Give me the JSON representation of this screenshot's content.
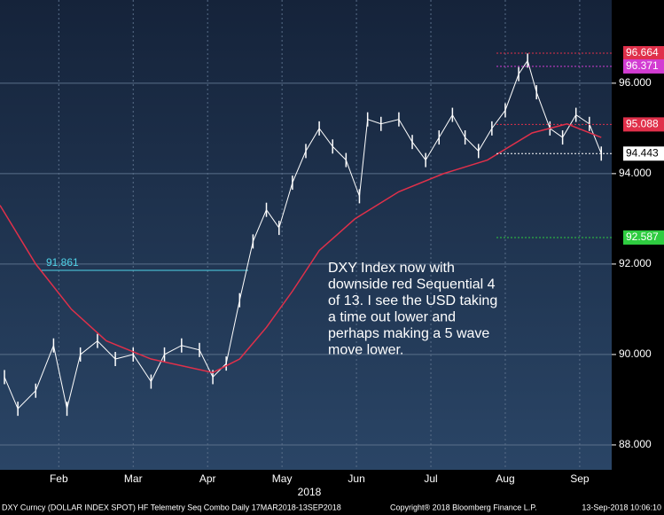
{
  "chart_data": {
    "type": "line",
    "x": [
      1.27,
      1.45,
      1.69,
      1.93,
      2.11,
      2.29,
      2.52,
      2.76,
      3.0,
      3.24,
      3.42,
      3.65,
      3.89,
      4.07,
      4.25,
      4.43,
      4.61,
      4.79,
      4.96,
      5.14,
      5.32,
      5.5,
      5.68,
      5.86,
      6.04,
      6.15,
      6.33,
      6.57,
      6.75,
      6.93,
      7.11,
      7.29,
      7.46,
      7.64,
      7.82,
      8.0,
      8.18,
      8.3,
      8.42,
      8.6,
      8.77,
      8.95,
      9.13,
      9.29
    ],
    "series": [
      {
        "color": "#ffffff",
        "values": [
          89.5,
          88.8,
          89.2,
          90.2,
          88.8,
          90.0,
          90.3,
          89.9,
          90.0,
          89.4,
          90.0,
          90.2,
          90.1,
          89.5,
          89.8,
          91.2,
          92.5,
          93.2,
          92.8,
          93.8,
          94.5,
          95.0,
          94.6,
          94.3,
          93.5,
          95.2,
          95.1,
          95.2,
          94.7,
          94.3,
          94.8,
          95.3,
          94.8,
          94.5,
          95.0,
          95.4,
          96.2,
          96.5,
          95.8,
          95.0,
          94.8,
          95.3,
          95.1,
          94.443
        ]
      }
    ],
    "ma": {
      "color": "#e0304a",
      "x": [
        1.21,
        1.69,
        2.17,
        2.64,
        3.24,
        4.07,
        4.43,
        4.79,
        5.14,
        5.5,
        5.98,
        6.57,
        7.17,
        7.76,
        8.36,
        8.83,
        9.29
      ],
      "values": [
        93.3,
        92.0,
        91.0,
        90.3,
        89.9,
        89.6,
        89.9,
        90.6,
        91.4,
        92.3,
        93.0,
        93.6,
        94.0,
        94.3,
        94.9,
        95.1,
        94.8
      ]
    },
    "xlim": [
      1.21,
      9.43
    ],
    "xticks": [
      {
        "value": 2,
        "label": "Feb"
      },
      {
        "value": 3,
        "label": "Mar"
      },
      {
        "value": 4,
        "label": "Apr"
      },
      {
        "value": 5,
        "label": "May"
      },
      {
        "value": 6,
        "label": "Jun"
      },
      {
        "value": 7,
        "label": "Jul"
      },
      {
        "value": 8,
        "label": "Aug"
      },
      {
        "value": 9,
        "label": "Sep"
      }
    ],
    "x_label": "2018",
    "ylim": [
      87.45,
      97.84
    ],
    "yticks": [
      {
        "value": 88,
        "label": "88.000"
      },
      {
        "value": 90,
        "label": "90.000"
      },
      {
        "value": 92,
        "label": "92.000"
      },
      {
        "value": 94,
        "label": "94.000"
      },
      {
        "value": 96,
        "label": "96.000"
      }
    ],
    "grid": true,
    "price_labels": [
      {
        "value": 96.664,
        "color": "#e0304a"
      },
      {
        "value": 96.371,
        "color": "#d23cd2"
      },
      {
        "value": 95.088,
        "color": "#e0304a"
      },
      {
        "value": 94.443,
        "color": "#ffffff"
      },
      {
        "value": 92.587,
        "color": "#2ecc40"
      }
    ],
    "left_level": {
      "value": 91.861,
      "color": "#4fd3e8"
    },
    "annotation": [
      "DXY Index now with",
      "downside red Sequential 4",
      "of 13.  I see the USD taking",
      "a time out lower and",
      "perhaps making a 5 wave",
      "move lower."
    ],
    "footer": {
      "left": "DXY Curncy (DOLLAR INDEX SPOT) HF Telemetry Seq Combo  Daily 17MAR2018-13SEP2018",
      "center": "Copyright® 2018 Bloomberg Finance L.P.",
      "right": "13-Sep-2018 10:06:10"
    }
  }
}
